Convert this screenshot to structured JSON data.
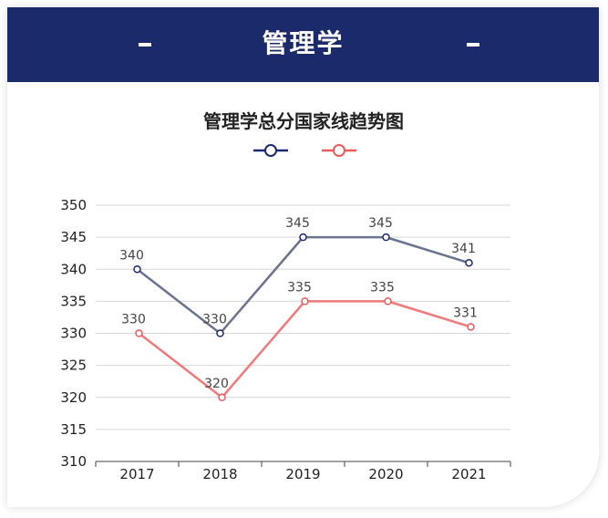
{
  "header": {
    "title": "管理学",
    "left_dash": "-",
    "right_dash": "-"
  },
  "colors": {
    "header_bg": "#1b2a6b",
    "series_1": "#6b7390",
    "series_1_marker": "#1b2a6b",
    "series_2": "#f07a7a",
    "series_2_marker": "#ea5a5a"
  },
  "chart_data": {
    "type": "line",
    "title": "管理学总分国家线趋势图",
    "categories": [
      "2017",
      "2018",
      "2019",
      "2020",
      "2021"
    ],
    "series": [
      {
        "values": [
          340,
          330,
          345,
          345,
          341
        ],
        "labels": [
          "340",
          "330",
          "345",
          "345",
          "341"
        ]
      },
      {
        "values": [
          330,
          320,
          335,
          335,
          331
        ],
        "labels": [
          "330",
          "320",
          "335",
          "335",
          "331"
        ]
      }
    ],
    "ylim": [
      310,
      350
    ],
    "yticks": [
      "310",
      "315",
      "320",
      "325",
      "330",
      "335",
      "340",
      "345",
      "350"
    ],
    "grid": true,
    "legend": "top-center"
  }
}
